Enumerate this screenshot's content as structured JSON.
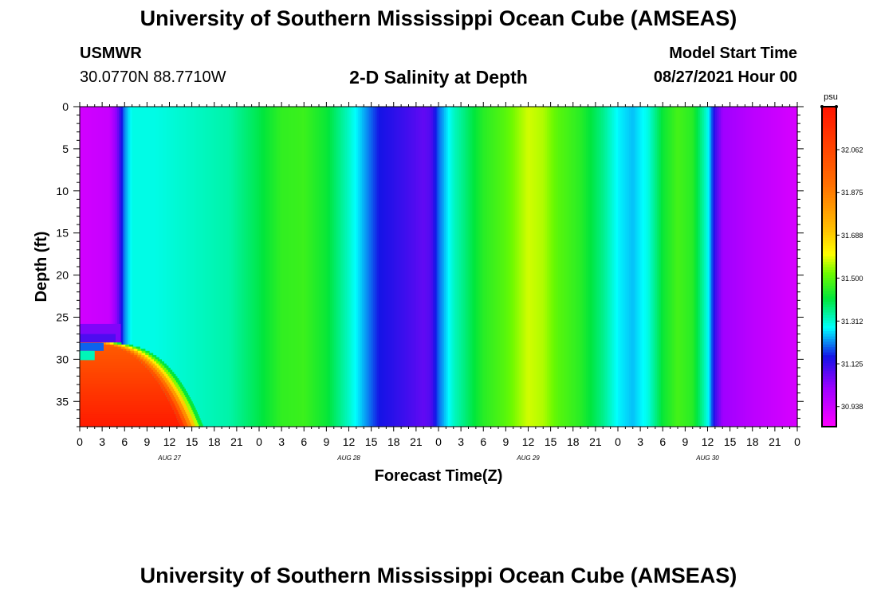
{
  "header": {
    "title": "University of Southern Mississippi Ocean Cube (AMSEAS)",
    "footer_title": "University of Southern Mississippi Ocean Cube (AMSEAS)",
    "station": "USMWR",
    "coords": "30.0770N  88.7710W",
    "subtitle": "2-D Salinity at Depth",
    "start_label": "Model Start Time",
    "start_value": "08/27/2021 Hour 00"
  },
  "chart_data": {
    "type": "heatmap",
    "title": "2-D Salinity at Depth",
    "xlabel": "Forecast Time(Z)",
    "ylabel": "Depth (ft)",
    "x_range_hours": [
      0,
      96
    ],
    "ylim": [
      0,
      38
    ],
    "y_inverted": true,
    "x_tick_labels": [
      "0",
      "3",
      "6",
      "9",
      "12",
      "15",
      "18",
      "21",
      "0",
      "3",
      "6",
      "9",
      "12",
      "15",
      "18",
      "21",
      "0",
      "3",
      "6",
      "9",
      "12",
      "15",
      "18",
      "21",
      "0",
      "3",
      "6",
      "9",
      "12",
      "15",
      "18",
      "21",
      "0"
    ],
    "y_tick_labels": [
      "0",
      "5",
      "10",
      "15",
      "20",
      "25",
      "30",
      "35"
    ],
    "day_labels": [
      {
        "label": "AUG 27",
        "hour": 12
      },
      {
        "label": "AUG 28",
        "hour": 36
      },
      {
        "label": "AUG 29",
        "hour": 60
      },
      {
        "label": "AUG 30",
        "hour": 84
      }
    ],
    "colorbar": {
      "unit": "psu",
      "min": 30.85,
      "max": 32.25,
      "tick_labels": [
        "32.062",
        "31.875",
        "31.688",
        "31.500",
        "31.312",
        "31.125",
        "30.938"
      ],
      "tick_values": [
        32.062,
        31.875,
        31.688,
        31.5,
        31.312,
        31.125,
        30.938
      ]
    },
    "surface_profile": {
      "hours": [
        0,
        4,
        5,
        6,
        7,
        10,
        15,
        20,
        24,
        27,
        30,
        33,
        36,
        40,
        44,
        46,
        47,
        48,
        50,
        54,
        57,
        60,
        62,
        64,
        67,
        70,
        72,
        74,
        76,
        78,
        80,
        82,
        84,
        85,
        86,
        90,
        96
      ],
      "salinity": [
        30.93,
        30.95,
        31.05,
        31.22,
        31.3,
        31.3,
        31.32,
        31.34,
        31.4,
        31.46,
        31.47,
        31.42,
        31.32,
        31.16,
        31.11,
        31.08,
        31.1,
        31.2,
        31.32,
        31.45,
        31.5,
        31.58,
        31.56,
        31.5,
        31.45,
        31.36,
        31.28,
        31.25,
        31.3,
        31.42,
        31.48,
        31.45,
        31.3,
        31.12,
        31.02,
        30.97,
        30.92
      ]
    },
    "bottom_anomaly": {
      "interface_depth": 28,
      "max_hour": 15,
      "upper_salinity": 31.22,
      "lower_salinity": 31.98
    }
  }
}
